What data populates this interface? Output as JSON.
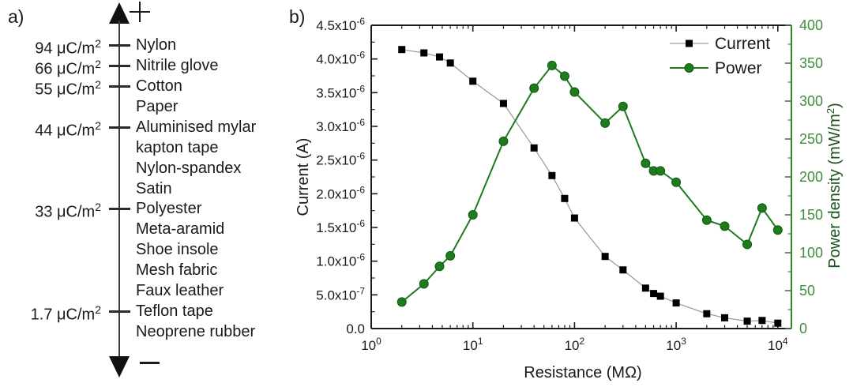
{
  "panel_a": {
    "label": "a)",
    "plus_sign": "+",
    "minus_sign": "−",
    "charge_unit_base": "μC/m",
    "charge_unit_sup": "2",
    "items": [
      {
        "name": "Nylon",
        "charge": "94"
      },
      {
        "name": "Nitrile glove",
        "charge": "66"
      },
      {
        "name": "Cotton",
        "charge": "55"
      },
      {
        "name": "Paper",
        "charge": null
      },
      {
        "name": "Aluminised mylar",
        "charge": "44"
      },
      {
        "name": "kapton tape",
        "charge": null
      },
      {
        "name": "Nylon-spandex",
        "charge": null
      },
      {
        "name": "Satin",
        "charge": null
      },
      {
        "name": "Polyester",
        "charge": "33"
      },
      {
        "name": "Meta-aramid",
        "charge": null
      },
      {
        "name": "Shoe insole",
        "charge": null
      },
      {
        "name": "Mesh fabric",
        "charge": null
      },
      {
        "name": "Faux leather",
        "charge": null
      },
      {
        "name": "Teflon tape",
        "charge": "1.7"
      },
      {
        "name": "Neoprene rubber",
        "charge": null
      }
    ]
  },
  "panel_b": {
    "label": "b)"
  },
  "chart_data": {
    "type": "line",
    "x_scale": "log",
    "xlabel": "Resistance (MΩ)",
    "ylabel_left": "Current (A)",
    "ylabel_right": {
      "base": "Power density (mW/m",
      "sup": "2",
      "tail": ")"
    },
    "xlim": [
      1,
      13600
    ],
    "ylim_left": [
      0,
      4.5e-06
    ],
    "ylim_right": [
      0,
      400
    ],
    "grid": false,
    "legend_position": "top-right",
    "x": [
      2,
      3.3,
      4.7,
      6,
      10,
      20,
      40,
      60,
      80,
      100,
      200,
      300,
      500,
      600,
      700,
      1000,
      2000,
      3000,
      5000,
      7000,
      10000
    ],
    "series": [
      {
        "name": "Current",
        "axis": "left",
        "marker": "square",
        "line_color": "#9c9c9c",
        "marker_color": "#000000",
        "values": [
          4.14e-06,
          4.09e-06,
          4.03e-06,
          3.94e-06,
          3.67e-06,
          3.34e-06,
          2.68e-06,
          2.27e-06,
          1.93e-06,
          1.64e-06,
          1.07e-06,
          8.7e-07,
          6e-07,
          5.2e-07,
          4.8e-07,
          3.8e-07,
          2.2e-07,
          1.6e-07,
          1.1e-07,
          1.2e-07,
          8e-08
        ]
      },
      {
        "name": "Power",
        "axis": "right",
        "marker": "circle",
        "line_color": "#1e7b1e",
        "marker_color": "#1e7b1e",
        "values": [
          35,
          59,
          82,
          96,
          150,
          247,
          317,
          347,
          333,
          312,
          271,
          293,
          218,
          208,
          208,
          193,
          143,
          135,
          111,
          159,
          130
        ]
      }
    ],
    "x_ticks": [
      {
        "v": 1,
        "base": "10",
        "sup": "0"
      },
      {
        "v": 10,
        "base": "10",
        "sup": "1"
      },
      {
        "v": 100,
        "base": "10",
        "sup": "2"
      },
      {
        "v": 1000,
        "base": "10",
        "sup": "3"
      },
      {
        "v": 10000,
        "base": "10",
        "sup": "4"
      }
    ],
    "y_ticks_left": [
      {
        "v": 0,
        "base": "0.0",
        "sup": ""
      },
      {
        "v": 5e-07,
        "base": "5.0x10",
        "sup": "-7"
      },
      {
        "v": 1e-06,
        "base": "1.0x10",
        "sup": "-6"
      },
      {
        "v": 1.5e-06,
        "base": "1.5x10",
        "sup": "-6"
      },
      {
        "v": 2e-06,
        "base": "2.0x10",
        "sup": "-6"
      },
      {
        "v": 2.5e-06,
        "base": "2.5x10",
        "sup": "-6"
      },
      {
        "v": 3e-06,
        "base": "3.0x10",
        "sup": "-6"
      },
      {
        "v": 3.5e-06,
        "base": "3.5x10",
        "sup": "-6"
      },
      {
        "v": 4e-06,
        "base": "4.0x10",
        "sup": "-6"
      },
      {
        "v": 4.5e-06,
        "base": "4.5x10",
        "sup": "-6"
      }
    ],
    "y_ticks_right": [
      0,
      50,
      100,
      150,
      200,
      250,
      300,
      350,
      400
    ],
    "colors": {
      "axis_black": "#1a1a1a",
      "axis_green": "#2f8a2f",
      "tick_label_green": "#3e8e3e",
      "right_title_green": "#1d521d"
    }
  }
}
